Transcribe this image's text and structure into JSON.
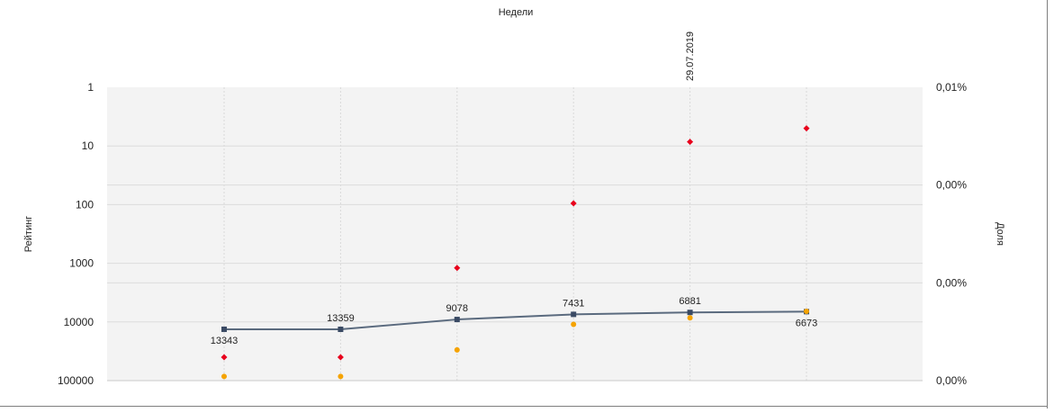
{
  "chart_data": {
    "type": "line",
    "title": "Недели",
    "ylabel": "Рейтинг",
    "y2label": "Доля",
    "date_label": "29.07.2019",
    "y_scale": "log",
    "y_inverted": true,
    "ylim": [
      1,
      100000
    ],
    "y_ticks": [
      "1",
      "10",
      "100",
      "1000",
      "10000",
      "100000"
    ],
    "y2_ticks": [
      "0,01%",
      "0,00%",
      "0,00%",
      "0,00%"
    ],
    "x_count": 6,
    "grid": true,
    "series": [
      {
        "type": "line",
        "color": "#5a6a7e",
        "marker_color": "#3a4a64",
        "values": [
          13343,
          13359,
          9078,
          7431,
          6881,
          6673
        ],
        "labels": [
          "13343",
          "13359",
          "9078",
          "7431",
          "6881",
          "6673"
        ],
        "label_positions": [
          "below",
          "above",
          "above",
          "above",
          "above",
          "below"
        ]
      },
      {
        "type": "scatter",
        "marker": "diamond",
        "color": "#e8001c",
        "values": [
          40000,
          40000,
          1200,
          95,
          8.5,
          5
        ]
      },
      {
        "type": "scatter",
        "marker": "circle",
        "color": "#f5a300",
        "values": [
          85000,
          85000,
          30000,
          11000,
          8500,
          6600
        ]
      }
    ]
  }
}
